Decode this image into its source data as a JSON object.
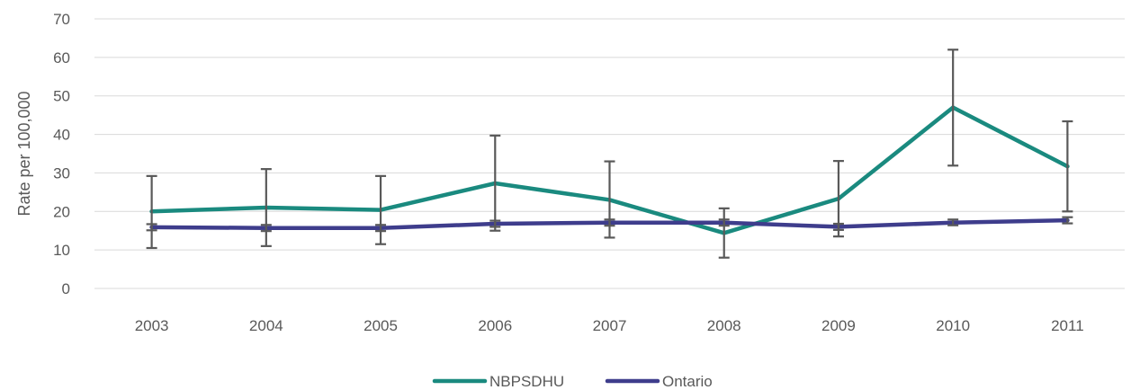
{
  "chart_data": {
    "type": "line",
    "title": "",
    "xlabel": "",
    "ylabel": "Rate per 100,000",
    "ylim": [
      0,
      70
    ],
    "yticks": [
      0,
      10,
      20,
      30,
      40,
      50,
      60,
      70
    ],
    "grid": true,
    "legend_position": "bottom",
    "categories": [
      "2003",
      "2004",
      "2005",
      "2006",
      "2007",
      "2008",
      "2009",
      "2010",
      "2011"
    ],
    "series": [
      {
        "name": "NBPSDHU",
        "color": "#1a8a7f",
        "values": [
          20.0,
          21.0,
          20.4,
          27.3,
          23.0,
          14.4,
          23.3,
          47.0,
          31.7
        ],
        "error_low": [
          10.5,
          11.0,
          11.5,
          15.0,
          13.2,
          8.0,
          13.5,
          31.9,
          20.0
        ],
        "error_high": [
          29.2,
          31.0,
          29.2,
          39.7,
          33.0,
          20.8,
          33.1,
          62.0,
          43.4
        ]
      },
      {
        "name": "Ontario",
        "color": "#3e3d8c",
        "values": [
          15.9,
          15.7,
          15.7,
          16.8,
          17.1,
          17.1,
          16.0,
          17.1,
          17.7
        ],
        "error_low": [
          15.1,
          14.9,
          14.9,
          16.0,
          16.3,
          16.3,
          15.2,
          16.4,
          16.9
        ],
        "error_high": [
          16.7,
          16.5,
          16.5,
          17.6,
          17.9,
          17.9,
          16.8,
          17.9,
          18.5
        ]
      }
    ],
    "error_bar_color": "#595959"
  }
}
